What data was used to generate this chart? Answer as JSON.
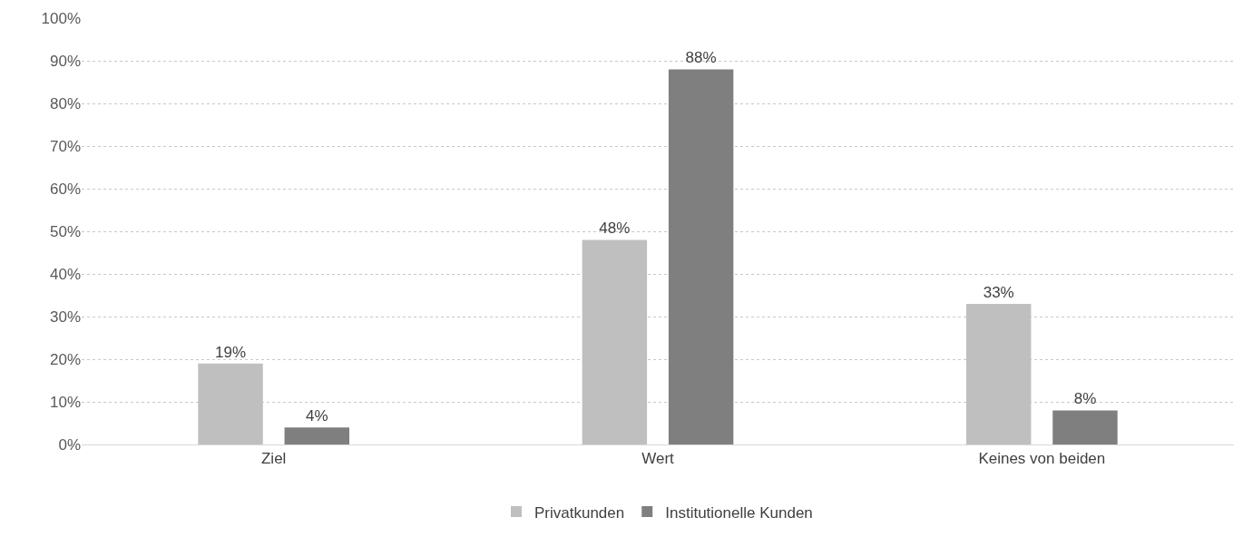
{
  "chart_data": {
    "type": "bar",
    "categories": [
      "Ziel",
      "Wert",
      "Keines von beiden"
    ],
    "series": [
      {
        "name": "Privatkunden",
        "color": "#bfbfbf",
        "values": [
          19,
          48,
          33
        ],
        "value_labels": [
          "19%",
          "48%",
          "33%"
        ]
      },
      {
        "name": "Institutionelle Kunden",
        "color": "#7f7f7f",
        "values": [
          4,
          88,
          8
        ],
        "value_labels": [
          "4%",
          "88%",
          "8%"
        ]
      }
    ],
    "ylim": [
      0,
      100
    ],
    "yticks": [
      {
        "value": 0,
        "label": "0%"
      },
      {
        "value": 10,
        "label": "10%"
      },
      {
        "value": 20,
        "label": "20%"
      },
      {
        "value": 30,
        "label": "30%"
      },
      {
        "value": 40,
        "label": "40%"
      },
      {
        "value": 50,
        "label": "50%"
      },
      {
        "value": 60,
        "label": "60%"
      },
      {
        "value": 70,
        "label": "70%"
      },
      {
        "value": 80,
        "label": "80%"
      },
      {
        "value": 90,
        "label": "90%"
      },
      {
        "value": 100,
        "label": "100%"
      }
    ],
    "grid": "y",
    "legend": "bottom"
  }
}
